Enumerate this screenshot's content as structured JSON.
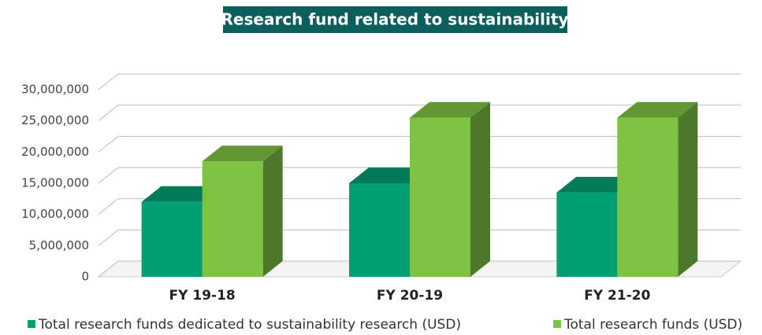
{
  "chart_data": {
    "type": "bar3d",
    "title": "Research fund related to sustainability",
    "categories": [
      "FY 19-18",
      "FY 20-19",
      "FY 21-20"
    ],
    "series": [
      {
        "name": "Total research funds dedicated to sustainability research (USD)",
        "color": "#009e73",
        "values": [
          12000000,
          15000000,
          13500000
        ]
      },
      {
        "name": "Total research funds (USD)",
        "color": "#7dc242",
        "values": [
          18500000,
          25500000,
          25500000
        ]
      }
    ],
    "ylim": [
      0,
      30000000
    ],
    "yticks": [
      0,
      {
        "value": 5000000,
        "label": "5,000,000"
      },
      {
        "value": 10000000,
        "label": "10,000,000"
      },
      {
        "value": 15000000,
        "label": "15,000,000"
      },
      {
        "value": 20000000,
        "label": "20,000,000"
      },
      {
        "value": 25000000,
        "label": "25,000,000"
      },
      {
        "value": 30000000,
        "label": "30,000,000"
      }
    ],
    "grid": true
  }
}
